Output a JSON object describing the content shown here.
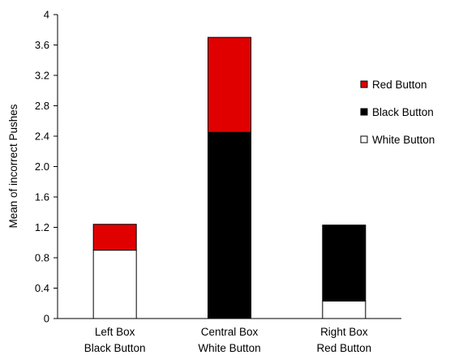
{
  "chart_data": {
    "type": "bar",
    "stacked": true,
    "title": "",
    "xlabel": "",
    "ylabel": "Mean of incorrect Pushes",
    "ylim": [
      0,
      4
    ],
    "y_ticks": [
      "0",
      "0.4",
      "0.8",
      "1.2",
      "1.6",
      "2.0",
      "2.4",
      "2.8",
      "3.2",
      "3.6",
      "4"
    ],
    "grid": false,
    "legend_position": "right",
    "categories": [
      [
        "Left Box",
        "Black Button"
      ],
      [
        "Central Box",
        "White Button"
      ],
      [
        "Right Box",
        "Red Button"
      ]
    ],
    "series": [
      {
        "name": "White Button",
        "color": "#ffffff",
        "values": [
          0.9,
          0,
          0.23
        ]
      },
      {
        "name": "Black Button",
        "color": "#000000",
        "values": [
          0,
          2.45,
          1.0
        ]
      },
      {
        "name": "Red Button",
        "color": "#e00000",
        "values": [
          0.34,
          1.25,
          0
        ]
      }
    ],
    "legend_order": [
      "Red Button",
      "Black Button",
      "White Button"
    ]
  }
}
